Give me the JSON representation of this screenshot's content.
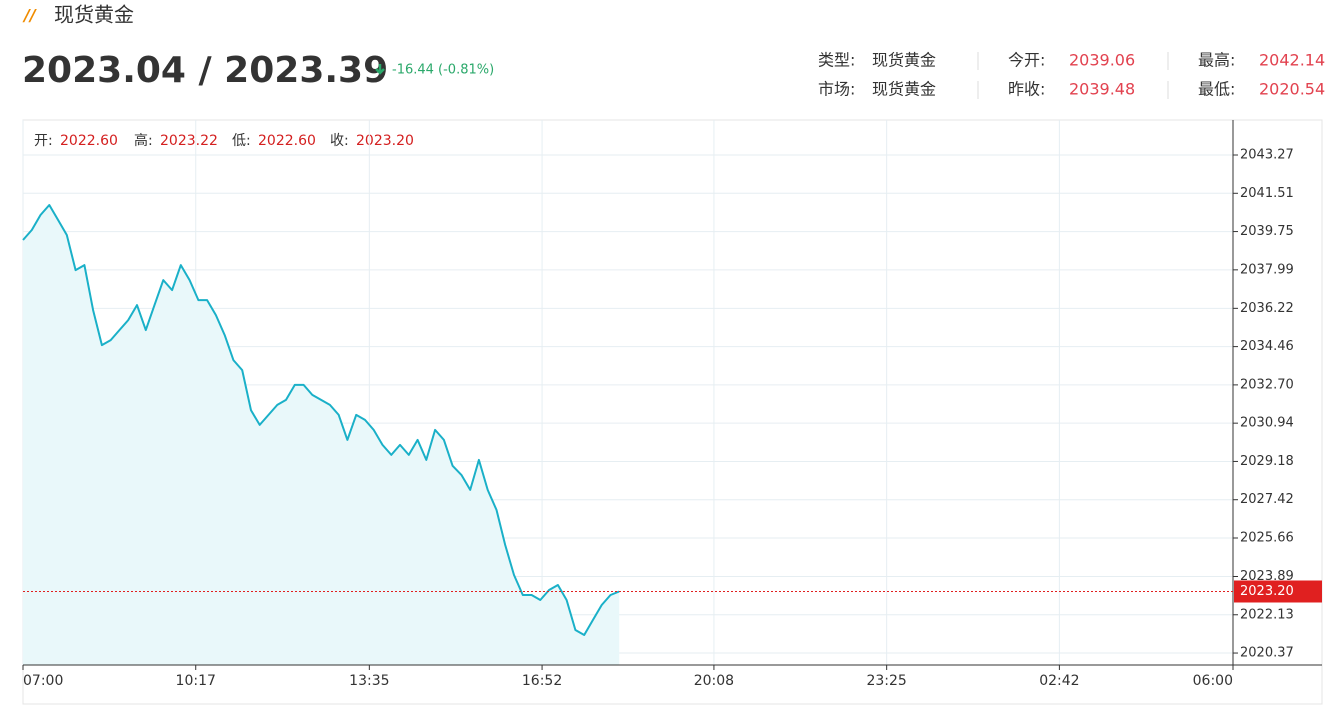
{
  "header": {
    "title": "现货黄金",
    "price": "2023.04 / 2023.39",
    "change": "-16.44 (-0.81%)",
    "info": [
      [
        {
          "label": "类型:",
          "value": "现货黄金"
        },
        {
          "label": "今开:",
          "value": "2039.06"
        },
        {
          "label": "最高:",
          "value": "2042.14"
        }
      ],
      [
        {
          "label": "市场:",
          "value": "现货黄金"
        },
        {
          "label": "昨收:",
          "value": "2039.48"
        },
        {
          "label": "最低:",
          "value": "2020.54"
        }
      ]
    ]
  },
  "ohlc": [
    {
      "label": "开:",
      "value": "2022.60"
    },
    {
      "label": "高:",
      "value": "2023.22"
    },
    {
      "label": "低:",
      "value": "2022.60"
    },
    {
      "label": "收:",
      "value": "2023.20"
    }
  ],
  "chart_data": {
    "type": "line",
    "color": "#1ab0c8",
    "area_color": "#e9f8fa",
    "grid": true,
    "x": [
      "07:00",
      "07:10",
      "07:20",
      "07:30",
      "07:40",
      "07:50",
      "08:00",
      "08:10",
      "08:20",
      "08:30",
      "08:40",
      "08:50",
      "09:00",
      "09:10",
      "09:20",
      "09:30",
      "09:40",
      "09:50",
      "10:00",
      "10:10",
      "10:20",
      "10:30",
      "10:40",
      "10:50",
      "11:00",
      "11:10",
      "11:20",
      "11:30",
      "11:40",
      "11:50",
      "12:00",
      "12:10",
      "12:20",
      "12:30",
      "12:40",
      "12:50",
      "13:00",
      "13:10",
      "13:20",
      "13:30",
      "13:40",
      "13:50",
      "14:00",
      "14:10",
      "14:20",
      "14:30",
      "14:40",
      "14:50",
      "15:00",
      "15:10",
      "15:20",
      "15:30",
      "15:40",
      "15:50",
      "16:00",
      "16:10",
      "16:20",
      "16:30",
      "16:40",
      "16:50",
      "17:00",
      "17:10",
      "17:20",
      "17:30",
      "17:40",
      "17:50",
      "18:00",
      "18:10",
      "18:20"
    ],
    "values": [
      2039.36,
      2039.82,
      2040.51,
      2040.97,
      2040.28,
      2039.59,
      2037.98,
      2038.21,
      2036.14,
      2034.53,
      2034.76,
      2035.22,
      2035.68,
      2036.37,
      2035.22,
      2036.37,
      2037.52,
      2037.06,
      2038.21,
      2037.52,
      2036.6,
      2036.6,
      2035.91,
      2034.99,
      2033.84,
      2033.38,
      2031.53,
      2030.86,
      2031.32,
      2031.78,
      2032.01,
      2032.7,
      2032.7,
      2032.24,
      2032.01,
      2031.78,
      2031.32,
      2030.17,
      2031.32,
      2031.09,
      2030.63,
      2029.94,
      2029.48,
      2029.94,
      2029.48,
      2030.17,
      2029.25,
      2030.63,
      2030.17,
      2028.98,
      2028.56,
      2027.87,
      2029.25,
      2027.87,
      2026.95,
      2025.34,
      2023.96,
      2023.04,
      2023.04,
      2022.81,
      2023.27,
      2023.5,
      2022.81,
      2021.43,
      2021.2,
      2021.89,
      2022.58,
      2023.04,
      2023.2
    ],
    "xlim": [
      "07:00",
      "06:00"
    ],
    "xticks": [
      "07:00",
      "10:17",
      "13:35",
      "16:52",
      "20:08",
      "23:25",
      "02:42",
      "06:00"
    ],
    "ylim": [
      2019.82,
      2044.88
    ],
    "yticks": [
      2043.27,
      2041.51,
      2039.75,
      2037.99,
      2036.22,
      2034.46,
      {
        "value": 2032.7,
        "label": "2032.70"
      },
      2030.94,
      2029.18,
      2027.42,
      2025.66,
      2023.89,
      2022.13,
      2020.37
    ],
    "price_line": {
      "value": 2023.2,
      "label": "2023.20",
      "color": "#e02020"
    }
  }
}
